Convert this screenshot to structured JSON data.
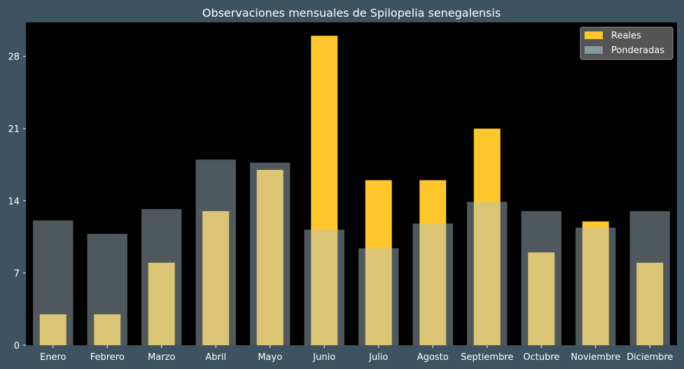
{
  "chart_data": {
    "type": "bar",
    "title": "Observaciones mensuales de Spilopelia senegalensis",
    "xlabel": "",
    "ylabel": "",
    "categories": [
      "Enero",
      "Febrero",
      "Marzo",
      "Abril",
      "Mayo",
      "Junio",
      "Julio",
      "Agosto",
      "Septiembre",
      "Octubre",
      "Noviembre",
      "Diciembre"
    ],
    "series": [
      {
        "name": "Reales",
        "values": [
          3,
          3,
          8,
          13,
          17,
          30,
          16,
          16,
          21,
          9,
          12,
          8
        ],
        "color": "#ffc72c"
      },
      {
        "name": "Ponderadas",
        "values": [
          12.1,
          10.8,
          13.2,
          18,
          17.7,
          11.2,
          9.4,
          11.8,
          13.9,
          13,
          11.4,
          13
        ],
        "color": "#b0c4ce"
      }
    ],
    "ylim": [
      0,
      31.3
    ],
    "yticks": [
      0,
      7,
      14,
      21,
      28
    ],
    "grid": false,
    "legend": "top-right"
  }
}
